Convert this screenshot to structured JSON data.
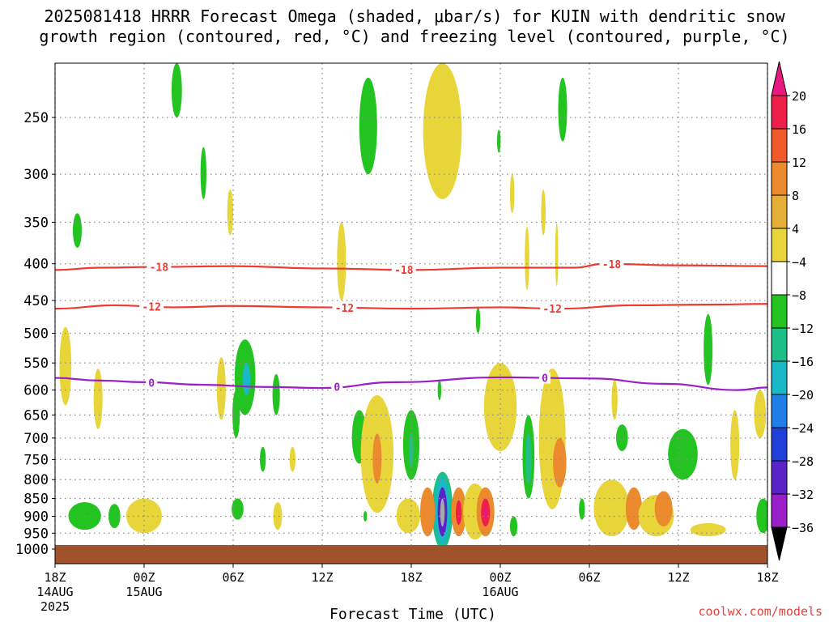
{
  "header": {
    "title_line1": "2025081418 HRRR Forecast Omega (shaded, μbar/s) for KUIN with dendritic snow",
    "title_line2": "growth region (contoured, red, °C) and freezing level (contoured, purple, °C)"
  },
  "footer": {
    "xlabel": "Forecast Time (UTC)",
    "credit": "coolwx.com/models"
  },
  "colors": {
    "isotherm": "#ee3a33",
    "freezing_level": "#9a1fc8",
    "ground": "#a0522d",
    "grid": "#8c8c8c"
  },
  "chart_data": {
    "type": "heatmap",
    "title": "2025081418 HRRR Forecast Omega (shaded, μbar/s) for KUIN with dendritic snow growth region (contoured, red, °C) and freezing level (contoured, purple, °C)",
    "xlabel": "Forecast Time (UTC)",
    "ylabel": "",
    "x_unit": "hours from 18Z 14AUG 2025",
    "xlim": [
      0,
      48
    ],
    "ylim_hpa": [
      1000,
      200
    ],
    "y_scale": "log-pressure (inverted)",
    "grid": true,
    "x_ticks": [
      {
        "x": 0,
        "label": "18Z",
        "sub": [
          "14AUG",
          "2025"
        ]
      },
      {
        "x": 6,
        "label": "00Z",
        "sub": [
          "15AUG"
        ]
      },
      {
        "x": 12,
        "label": "06Z",
        "sub": []
      },
      {
        "x": 18,
        "label": "12Z",
        "sub": []
      },
      {
        "x": 24,
        "label": "18Z",
        "sub": []
      },
      {
        "x": 30,
        "label": "00Z",
        "sub": [
          "16AUG"
        ]
      },
      {
        "x": 36,
        "label": "06Z",
        "sub": []
      },
      {
        "x": 42,
        "label": "12Z",
        "sub": []
      },
      {
        "x": 48,
        "label": "18Z",
        "sub": []
      }
    ],
    "y_ticks": [
      250,
      300,
      350,
      400,
      450,
      500,
      550,
      600,
      650,
      700,
      750,
      800,
      850,
      900,
      950,
      1000
    ],
    "colorbar": {
      "labels": [
        "20",
        "16",
        "12",
        "8",
        "4",
        "−4",
        "−8",
        "−12",
        "−16",
        "−20",
        "−24",
        "−28",
        "−32",
        "−36"
      ],
      "levels": [
        20,
        16,
        12,
        8,
        4,
        -4,
        -8,
        -12,
        -16,
        -20,
        -24,
        -28,
        -32,
        -36
      ],
      "colors": [
        "#ee1f4a",
        "#f05a2a",
        "#ec8a2e",
        "#e4ae38",
        "#e8d53a",
        "#ffffff",
        "#23c421",
        "#1dbf88",
        "#19b8c6",
        "#1f7fe6",
        "#1f3fd8",
        "#5a23c8",
        "#9a1fc8",
        "#a8a8a8"
      ],
      "over_color": "#e8187f",
      "under_color": "#000000"
    },
    "contours": [
      {
        "name": "-18",
        "color": "#ee3a33",
        "label_positions": [
          7,
          23.5,
          37.5
        ],
        "points": [
          [
            0,
            408
          ],
          [
            3,
            405
          ],
          [
            7,
            404
          ],
          [
            12,
            403
          ],
          [
            18,
            406
          ],
          [
            24,
            408
          ],
          [
            30,
            405
          ],
          [
            35,
            405
          ],
          [
            37,
            400
          ],
          [
            42,
            402
          ],
          [
            48,
            403
          ]
        ]
      },
      {
        "name": "-12",
        "color": "#ee3a33",
        "label_positions": [
          6.5,
          19.5,
          33.5
        ],
        "points": [
          [
            0,
            462
          ],
          [
            4,
            457
          ],
          [
            8,
            460
          ],
          [
            12,
            458
          ],
          [
            18,
            460
          ],
          [
            24,
            462
          ],
          [
            30,
            460
          ],
          [
            34,
            462
          ],
          [
            39,
            457
          ],
          [
            44,
            456
          ],
          [
            48,
            455
          ]
        ]
      },
      {
        "name": "0",
        "color": "#9a1fc8",
        "label_positions": [
          6.5,
          19,
          33
        ],
        "points": [
          [
            0,
            577
          ],
          [
            3,
            582
          ],
          [
            6,
            585
          ],
          [
            10,
            590
          ],
          [
            14,
            594
          ],
          [
            18,
            596
          ],
          [
            23,
            585
          ],
          [
            30,
            576
          ],
          [
            36,
            578
          ],
          [
            41,
            588
          ],
          [
            46,
            600
          ],
          [
            48,
            595
          ]
        ]
      }
    ],
    "omega_cells": [
      {
        "t": 2.0,
        "p": 900,
        "rx": 1.1,
        "ry": 40,
        "v": -6
      },
      {
        "t": 4.0,
        "p": 900,
        "rx": 0.4,
        "ry": 35,
        "v": -5
      },
      {
        "t": 0.7,
        "p": 560,
        "rx": 0.4,
        "ry": 70,
        "v": 5
      },
      {
        "t": 1.5,
        "p": 360,
        "rx": 0.3,
        "ry": 20,
        "v": -5
      },
      {
        "t": 6.0,
        "p": 900,
        "rx": 1.2,
        "ry": 50,
        "v": 5
      },
      {
        "t": 2.9,
        "p": 620,
        "rx": 0.3,
        "ry": 60,
        "v": 5
      },
      {
        "t": 8.2,
        "p": 225,
        "rx": 0.35,
        "ry": 25,
        "v": -6
      },
      {
        "t": 10.0,
        "p": 300,
        "rx": 0.2,
        "ry": 25,
        "v": -5
      },
      {
        "t": 11.8,
        "p": 340,
        "rx": 0.2,
        "ry": 25,
        "v": 5
      },
      {
        "t": 12.8,
        "p": 580,
        "rx": 0.7,
        "ry": 70,
        "v": -7
      },
      {
        "t": 12.9,
        "p": 580,
        "rx": 0.25,
        "ry": 30,
        "v": -14
      },
      {
        "t": 11.2,
        "p": 600,
        "rx": 0.3,
        "ry": 60,
        "v": 5
      },
      {
        "t": 12.2,
        "p": 650,
        "rx": 0.25,
        "ry": 50,
        "v": -5
      },
      {
        "t": 12.3,
        "p": 880,
        "rx": 0.4,
        "ry": 30,
        "v": -6
      },
      {
        "t": 14.9,
        "p": 610,
        "rx": 0.25,
        "ry": 40,
        "v": -5
      },
      {
        "t": 14.0,
        "p": 750,
        "rx": 0.2,
        "ry": 30,
        "v": -5
      },
      {
        "t": 16.0,
        "p": 750,
        "rx": 0.2,
        "ry": 30,
        "v": 5
      },
      {
        "t": 15.0,
        "p": 900,
        "rx": 0.3,
        "ry": 40,
        "v": 5
      },
      {
        "t": 21.1,
        "p": 260,
        "rx": 0.6,
        "ry": 40,
        "v": -6
      },
      {
        "t": 19.3,
        "p": 400,
        "rx": 0.3,
        "ry": 50,
        "v": 5
      },
      {
        "t": 20.5,
        "p": 700,
        "rx": 0.5,
        "ry": 60,
        "v": -6
      },
      {
        "t": 21.7,
        "p": 750,
        "rx": 1.1,
        "ry": 140,
        "v": 5
      },
      {
        "t": 21.7,
        "p": 750,
        "rx": 0.3,
        "ry": 60,
        "v": 9
      },
      {
        "t": 20.9,
        "p": 900,
        "rx": 0.12,
        "ry": 15,
        "v": -5
      },
      {
        "t": 26.1,
        "p": 250,
        "rx": 1.3,
        "ry": 75,
        "v": 5
      },
      {
        "t": 24.0,
        "p": 720,
        "rx": 0.55,
        "ry": 80,
        "v": -6
      },
      {
        "t": 24.0,
        "p": 730,
        "rx": 0.15,
        "ry": 40,
        "v": -11
      },
      {
        "t": 23.8,
        "p": 900,
        "rx": 0.8,
        "ry": 50,
        "v": 6
      },
      {
        "t": 26.1,
        "p": 890,
        "rx": 0.7,
        "ry": 110,
        "v": -8
      },
      {
        "t": 26.1,
        "p": 890,
        "rx": 0.5,
        "ry": 95,
        "v": -15
      },
      {
        "t": 26.1,
        "p": 890,
        "rx": 0.32,
        "ry": 70,
        "v": -26
      },
      {
        "t": 26.1,
        "p": 890,
        "rx": 0.15,
        "ry": 40,
        "v": -34
      },
      {
        "t": 25.1,
        "p": 890,
        "rx": 0.5,
        "ry": 70,
        "v": 10
      },
      {
        "t": 27.2,
        "p": 890,
        "rx": 0.5,
        "ry": 70,
        "v": 10
      },
      {
        "t": 27.2,
        "p": 890,
        "rx": 0.2,
        "ry": 35,
        "v": 16
      },
      {
        "t": 28.3,
        "p": 890,
        "rx": 0.8,
        "ry": 80,
        "v": 6
      },
      {
        "t": 29.0,
        "p": 890,
        "rx": 0.6,
        "ry": 70,
        "v": 10
      },
      {
        "t": 29.0,
        "p": 890,
        "rx": 0.3,
        "ry": 40,
        "v": 16
      },
      {
        "t": 29.0,
        "p": 890,
        "rx": 0.12,
        "ry": 15,
        "v": 21
      },
      {
        "t": 25.9,
        "p": 600,
        "rx": 0.12,
        "ry": 20,
        "v": -5
      },
      {
        "t": 28.5,
        "p": 480,
        "rx": 0.15,
        "ry": 20,
        "v": -5
      },
      {
        "t": 30.0,
        "p": 640,
        "rx": 1.1,
        "ry": 90,
        "v": 5
      },
      {
        "t": 29.9,
        "p": 270,
        "rx": 0.12,
        "ry": 10,
        "v": -5
      },
      {
        "t": 30.8,
        "p": 320,
        "rx": 0.15,
        "ry": 20,
        "v": 5
      },
      {
        "t": 31.9,
        "p": 750,
        "rx": 0.4,
        "ry": 100,
        "v": -6
      },
      {
        "t": 31.9,
        "p": 750,
        "rx": 0.2,
        "ry": 60,
        "v": -11
      },
      {
        "t": 30.9,
        "p": 930,
        "rx": 0.25,
        "ry": 30,
        "v": -5
      },
      {
        "t": 33.5,
        "p": 720,
        "rx": 0.9,
        "ry": 160,
        "v": 5
      },
      {
        "t": 34.0,
        "p": 760,
        "rx": 0.45,
        "ry": 60,
        "v": 9
      },
      {
        "t": 32.9,
        "p": 340,
        "rx": 0.15,
        "ry": 25,
        "v": 5
      },
      {
        "t": 31.8,
        "p": 395,
        "rx": 0.15,
        "ry": 40,
        "v": 5
      },
      {
        "t": 33.8,
        "p": 390,
        "rx": 0.1,
        "ry": 40,
        "v": 5
      },
      {
        "t": 34.2,
        "p": 245,
        "rx": 0.3,
        "ry": 25,
        "v": -5
      },
      {
        "t": 35.5,
        "p": 880,
        "rx": 0.2,
        "ry": 30,
        "v": -5
      },
      {
        "t": 37.5,
        "p": 880,
        "rx": 1.2,
        "ry": 80,
        "v": 5
      },
      {
        "t": 37.7,
        "p": 620,
        "rx": 0.2,
        "ry": 40,
        "v": 5
      },
      {
        "t": 38.2,
        "p": 700,
        "rx": 0.4,
        "ry": 30,
        "v": -6
      },
      {
        "t": 39.0,
        "p": 880,
        "rx": 0.55,
        "ry": 60,
        "v": 9
      },
      {
        "t": 40.5,
        "p": 900,
        "rx": 1.2,
        "ry": 60,
        "v": 5
      },
      {
        "t": 41.0,
        "p": 880,
        "rx": 0.6,
        "ry": 50,
        "v": 10
      },
      {
        "t": 42.3,
        "p": 740,
        "rx": 1.0,
        "ry": 60,
        "v": -6
      },
      {
        "t": 44.0,
        "p": 530,
        "rx": 0.3,
        "ry": 60,
        "v": -6
      },
      {
        "t": 44.0,
        "p": 940,
        "rx": 1.2,
        "ry": 20,
        "v": 5
      },
      {
        "t": 45.8,
        "p": 720,
        "rx": 0.3,
        "ry": 80,
        "v": 5
      },
      {
        "t": 47.5,
        "p": 650,
        "rx": 0.4,
        "ry": 50,
        "v": 5
      },
      {
        "t": 47.7,
        "p": 900,
        "rx": 0.45,
        "ry": 50,
        "v": -7
      }
    ]
  }
}
